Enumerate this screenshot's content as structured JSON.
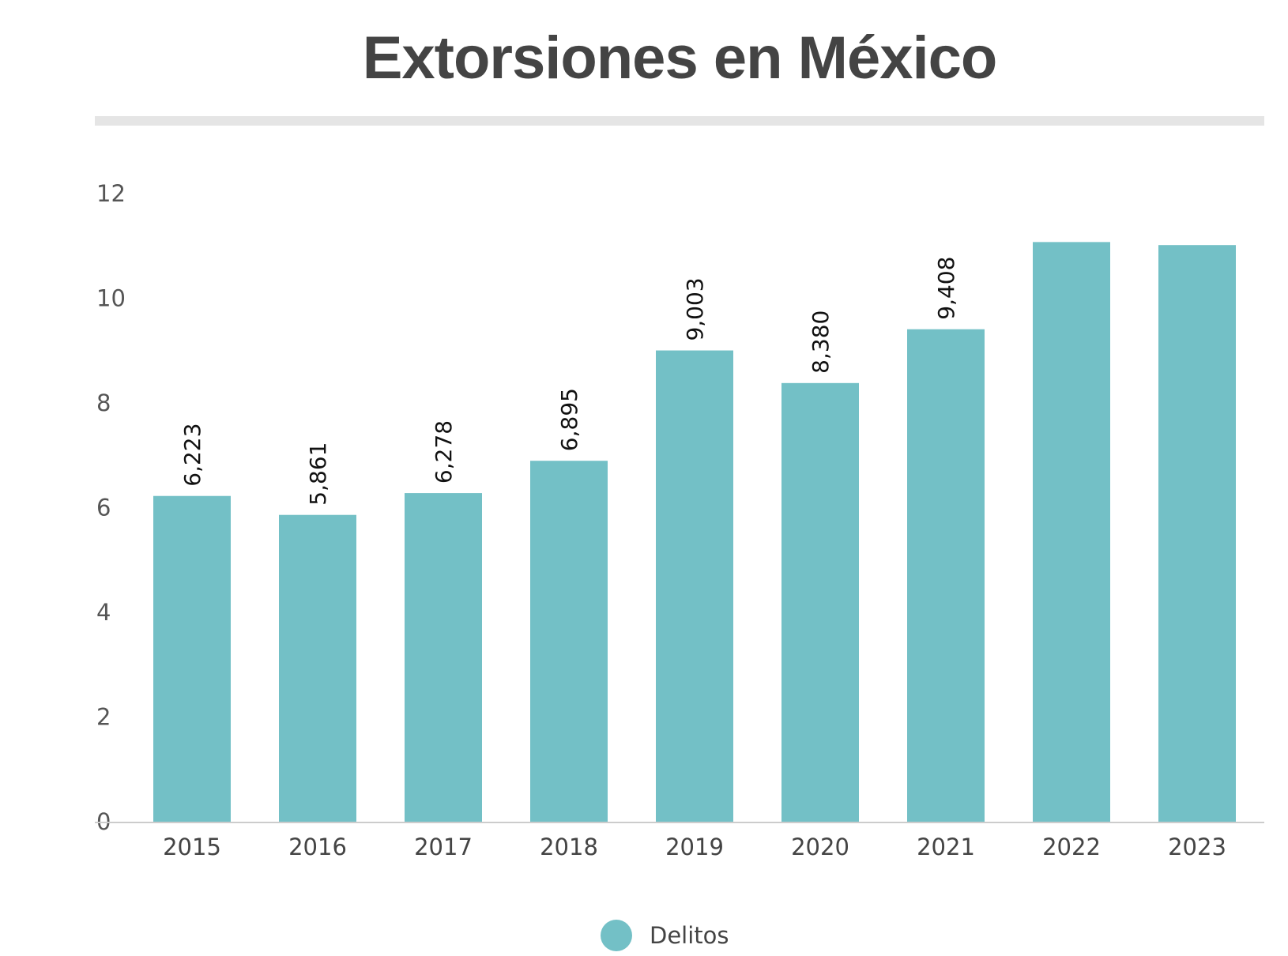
{
  "chart_data": {
    "type": "bar",
    "title": "Extorsiones en México",
    "xlabel": "",
    "ylabel": "",
    "categories": [
      "2015",
      "2016",
      "2017",
      "2018",
      "2019",
      "2020",
      "2021",
      "2022",
      "2023"
    ],
    "series": [
      {
        "name": "Delitos",
        "values": [
          6223,
          5861,
          6278,
          6895,
          9003,
          8380,
          9408,
          11074,
          11016
        ],
        "data_labels": [
          "6,223",
          "5,861",
          "6,278",
          "6,895",
          "9,003",
          "8,380",
          "9,408",
          "",
          ""
        ]
      }
    ],
    "yticks": [
      "0",
      "2",
      "4",
      "6",
      "8",
      "10",
      "12"
    ],
    "ylim": [
      0,
      12500
    ],
    "grid": false,
    "legend": "bottom-center",
    "colors": {
      "bar": "#73c0c6",
      "title": "#444444",
      "axis": "#cccccc"
    }
  }
}
